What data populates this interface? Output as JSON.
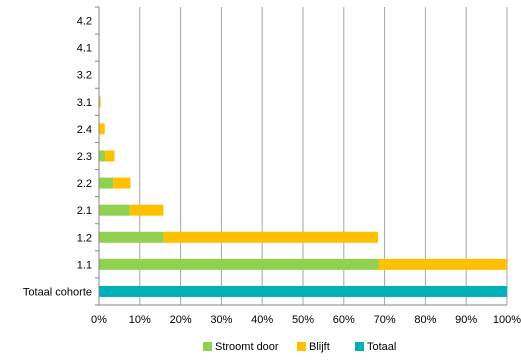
{
  "chart_data": {
    "type": "bar",
    "orientation": "horizontal",
    "stacked": true,
    "title": "",
    "xlabel": "",
    "ylabel": "",
    "categories": [
      "4.2",
      "4.1",
      "3.2",
      "3.1",
      "2.4",
      "2.3",
      "2.2",
      "2.1",
      "1.2",
      "1.1",
      "Totaal cohorte"
    ],
    "series": [
      {
        "name": "Stroomt door",
        "color": "#92D050",
        "values": [
          0,
          0,
          0,
          0,
          0,
          1.5,
          3.5,
          7.5,
          15.8,
          68.5,
          0
        ]
      },
      {
        "name": "Blijft",
        "color": "#FFC000",
        "values": [
          0,
          0,
          0,
          0.4,
          1.4,
          2.3,
          4.2,
          8.3,
          52.6,
          31.5,
          0
        ]
      },
      {
        "name": "Totaal",
        "color": "#00B0B8",
        "values": [
          0,
          0,
          0,
          0,
          0,
          0,
          0,
          0,
          0,
          0,
          100
        ]
      }
    ],
    "xlim": [
      0,
      100
    ],
    "xticks": [
      "0%",
      "10%",
      "20%",
      "30%",
      "40%",
      "50%",
      "60%",
      "70%",
      "80%",
      "90%",
      "100%"
    ],
    "grid": "vertical",
    "legend": "bottom-center"
  }
}
